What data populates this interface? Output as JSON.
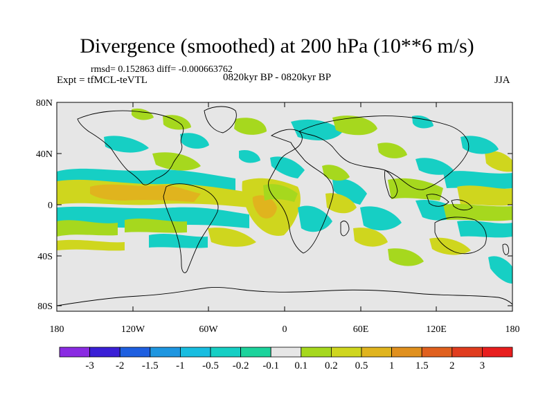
{
  "title": "Divergence (smoothed) at 200 hPa (10**6 m/s)",
  "stats": "rmsd= 0.152863 diff= -0.000663762",
  "experiment": "Expt = tfMCL-teVTL",
  "period": "0820kyr BP - 0820kyr BP",
  "season": "JJA",
  "axes": {
    "lat_labels": [
      "80N",
      "40N",
      "0",
      "40S",
      "80S"
    ],
    "lon_labels": [
      "180",
      "120W",
      "60W",
      "0",
      "60E",
      "120E",
      "180"
    ]
  },
  "colorbar": {
    "labels": [
      "-3",
      "-2",
      "-1.5",
      "-1",
      "-0.5",
      "-0.2",
      "-0.1",
      "0.1",
      "0.2",
      "0.5",
      "1",
      "1.5",
      "2",
      "3"
    ],
    "colors": [
      "#8a2be2",
      "#3a1fd6",
      "#1e5fe0",
      "#1e96e0",
      "#18bde0",
      "#16cfc4",
      "#1cd39c",
      "#e6e6e6",
      "#a6d81e",
      "#cfd61e",
      "#e0b41e",
      "#e0901e",
      "#e0601e",
      "#e03c1e",
      "#e81e1e"
    ]
  },
  "palette": {
    "background": "#e6e6e6",
    "teal": "#1cd39c",
    "cyan": "#16cfc4",
    "green": "#a6d81e",
    "yellow": "#cfd61e",
    "orange": "#e0b41e"
  }
}
